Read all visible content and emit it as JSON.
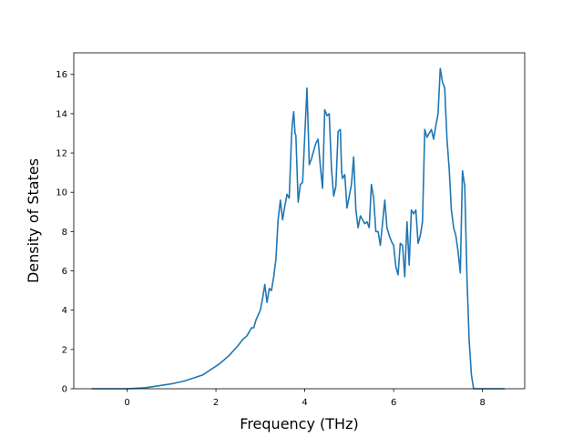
{
  "chart_data": {
    "type": "line",
    "xlabel": "Frequency (THz)",
    "ylabel": "Density of States",
    "xlim": [
      -1.2,
      8.95
    ],
    "ylim": [
      0,
      17.1
    ],
    "xticks": [
      0,
      2,
      4,
      6,
      8
    ],
    "yticks": [
      0,
      2,
      4,
      6,
      8,
      10,
      12,
      14,
      16
    ],
    "grid": false,
    "line_color": "#1f77b4",
    "series": [
      {
        "x": [
          -0.8,
          0.0,
          0.4,
          0.7,
          1.0,
          1.3,
          1.5,
          1.7,
          1.9,
          2.1,
          2.3,
          2.5,
          2.6,
          2.7,
          2.8,
          2.85,
          2.9,
          3.0,
          3.05,
          3.1,
          3.15,
          3.2,
          3.25,
          3.3,
          3.35,
          3.4,
          3.45,
          3.5,
          3.55,
          3.6,
          3.65,
          3.7,
          3.72,
          3.75,
          3.78,
          3.8,
          3.85,
          3.9,
          3.95,
          4.0,
          4.05,
          4.08,
          4.1,
          4.15,
          4.2,
          4.25,
          4.3,
          4.35,
          4.4,
          4.45,
          4.5,
          4.55,
          4.6,
          4.65,
          4.7,
          4.75,
          4.8,
          4.83,
          4.85,
          4.9,
          4.95,
          5.0,
          5.05,
          5.1,
          5.15,
          5.2,
          5.25,
          5.3,
          5.35,
          5.4,
          5.45,
          5.5,
          5.55,
          5.6,
          5.65,
          5.7,
          5.75,
          5.8,
          5.85,
          5.9,
          5.95,
          6.0,
          6.05,
          6.1,
          6.15,
          6.2,
          6.25,
          6.3,
          6.35,
          6.4,
          6.45,
          6.5,
          6.55,
          6.6,
          6.65,
          6.7,
          6.75,
          6.8,
          6.85,
          6.9,
          6.95,
          7.0,
          7.05,
          7.1,
          7.15,
          7.2,
          7.25,
          7.3,
          7.35,
          7.4,
          7.45,
          7.5,
          7.55,
          7.6,
          7.65,
          7.7,
          7.75,
          7.8,
          8.5
        ],
        "y": [
          0,
          0,
          0.05,
          0.15,
          0.25,
          0.4,
          0.55,
          0.7,
          1.0,
          1.3,
          1.7,
          2.2,
          2.5,
          2.7,
          3.1,
          3.1,
          3.5,
          4.0,
          4.6,
          5.3,
          4.4,
          5.1,
          5.0,
          5.7,
          6.6,
          8.6,
          9.6,
          8.6,
          9.3,
          9.9,
          9.7,
          12.8,
          13.5,
          14.1,
          13.0,
          12.9,
          9.5,
          10.4,
          10.5,
          12.9,
          15.3,
          13.0,
          11.4,
          11.7,
          12.1,
          12.5,
          12.7,
          11.3,
          10.2,
          14.2,
          13.9,
          14.0,
          11.2,
          9.8,
          10.3,
          13.1,
          13.2,
          11.0,
          10.7,
          10.9,
          9.2,
          9.8,
          10.4,
          11.8,
          9.1,
          8.2,
          8.8,
          8.6,
          8.4,
          8.5,
          8.2,
          10.4,
          9.7,
          8.0,
          8.0,
          7.3,
          8.4,
          9.6,
          8.2,
          7.8,
          7.5,
          7.3,
          6.2,
          5.8,
          7.4,
          7.3,
          5.7,
          8.5,
          6.3,
          9.1,
          8.9,
          9.1,
          7.4,
          7.8,
          8.5,
          13.2,
          12.8,
          13.0,
          13.2,
          12.7,
          13.4,
          14.0,
          16.3,
          15.6,
          15.3,
          12.7,
          11.2,
          9.1,
          8.2,
          7.8,
          7.0,
          5.9,
          11.1,
          10.3,
          5.7,
          2.5,
          0.7,
          0,
          0
        ]
      }
    ]
  }
}
